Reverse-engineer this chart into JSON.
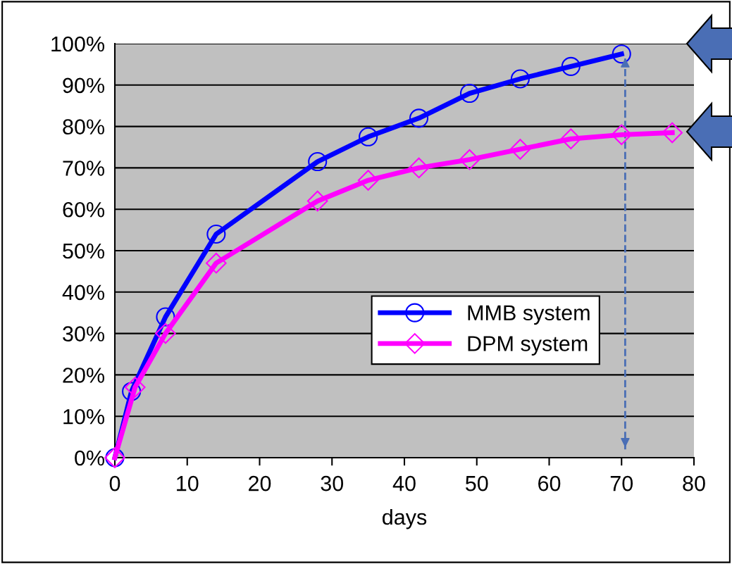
{
  "chart_data": {
    "type": "line",
    "xlabel": "days",
    "xlim": [
      0,
      80
    ],
    "xticks": [
      0,
      10,
      20,
      30,
      40,
      50,
      60,
      70,
      80
    ],
    "ylim": [
      0,
      100
    ],
    "yticks": [
      {
        "value": 0,
        "label": "0%"
      },
      {
        "value": 10,
        "label": "10%"
      },
      {
        "value": 20,
        "label": "20%"
      },
      {
        "value": 30,
        "label": "30%"
      },
      {
        "value": 40,
        "label": "40%"
      },
      {
        "value": 50,
        "label": "50%"
      },
      {
        "value": 60,
        "label": "60%"
      },
      {
        "value": 70,
        "label": "70%"
      },
      {
        "value": 80,
        "label": "80%"
      },
      {
        "value": 90,
        "label": "90%"
      },
      {
        "value": 100,
        "label": "100%"
      }
    ],
    "grid": "y",
    "legend": "bottom right",
    "series": [
      {
        "name": "MMB system",
        "color": "#0000ff",
        "marker": "circle",
        "x": [
          0,
          2.3,
          7,
          14,
          28,
          35,
          42,
          49,
          56,
          63,
          70
        ],
        "values": [
          0,
          16,
          34,
          54,
          71.5,
          77.5,
          82,
          88,
          91.5,
          94.5,
          97.5
        ]
      },
      {
        "name": "DPM system",
        "color": "#ff00ff",
        "marker": "diamond",
        "x": [
          0,
          2.8,
          7,
          14,
          28,
          35,
          42,
          49,
          56,
          63,
          70,
          77
        ],
        "values": [
          0,
          17,
          30,
          47,
          62,
          67,
          70,
          72,
          74.5,
          77,
          78,
          78.5
        ]
      }
    ],
    "ref_lines": [
      {
        "axis": "x",
        "value": 70.5,
        "color": "#4a6eb5",
        "line_style": "dashed"
      }
    ]
  }
}
